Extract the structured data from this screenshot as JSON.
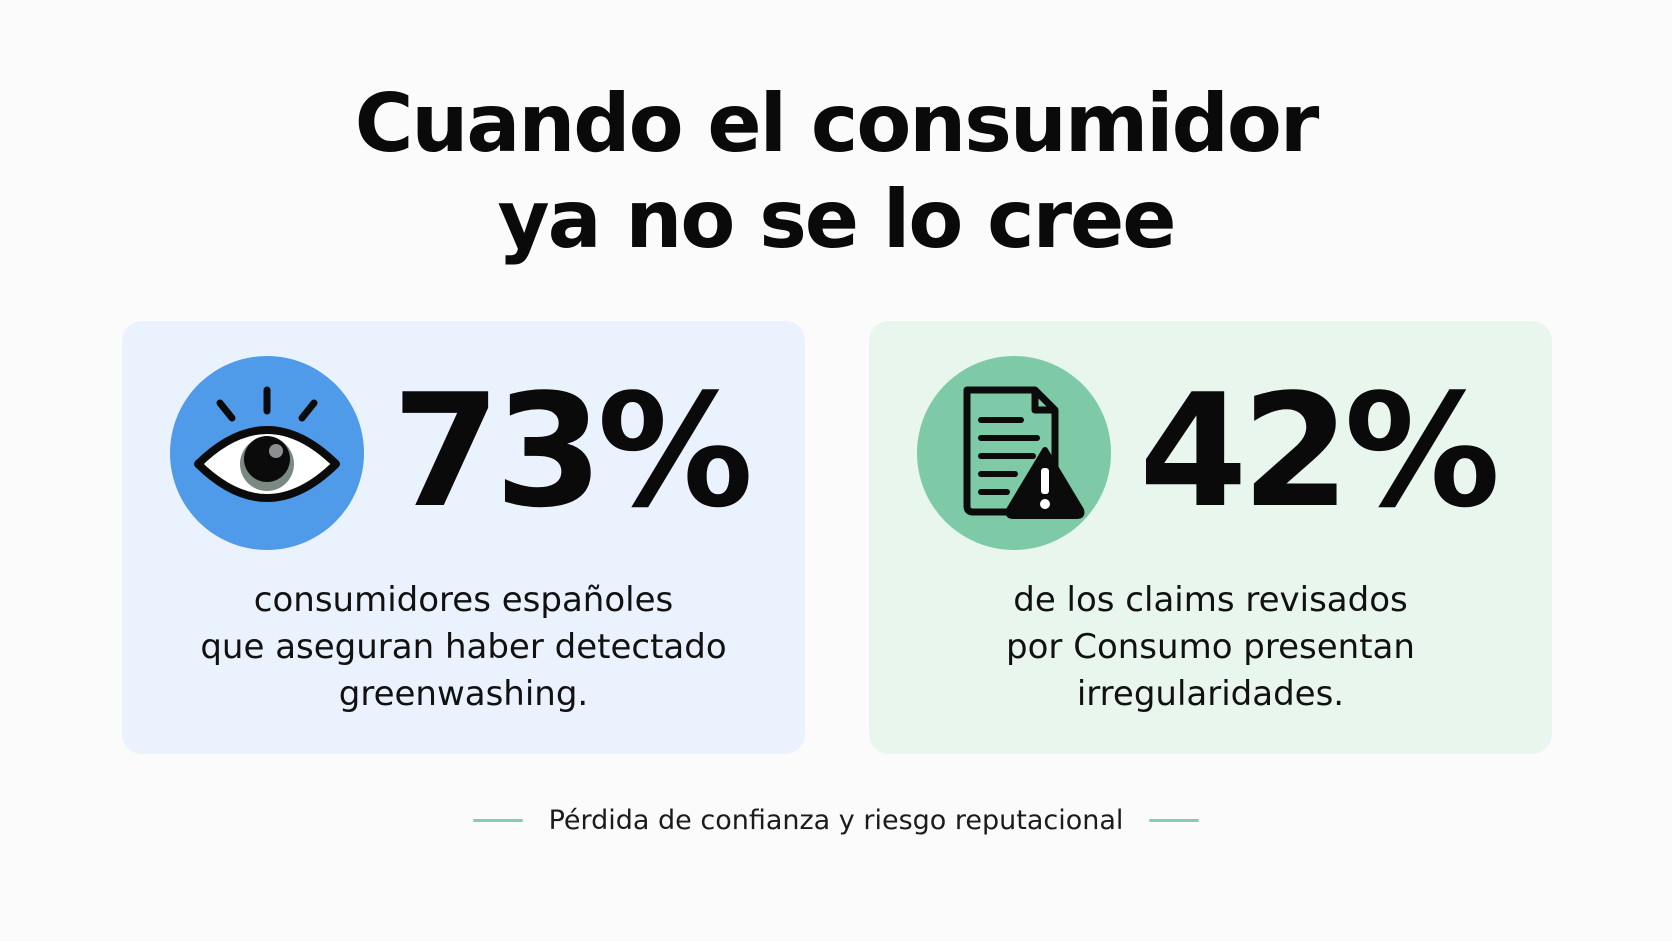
{
  "title": {
    "line1": "Cuando el consumidor",
    "line2": "ya no se lo cree"
  },
  "cards": [
    {
      "icon": "eye-icon",
      "stat": "73%",
      "description": [
        "consumidores españoles",
        "que aseguran haber detectado",
        "greenwashing."
      ],
      "accent_color": "#4f9be9",
      "background_color": "#eaf2fd"
    },
    {
      "icon": "document-warning-icon",
      "stat": "42%",
      "description": [
        "de los claims revisados",
        "por Consumo presentan",
        "irregularidades."
      ],
      "accent_color": "#7fcaa6",
      "background_color": "#e8f6ee"
    }
  ],
  "footer": {
    "text": "Pérdida de confianza y riesgo reputacional",
    "rule_color": "#86cdb0"
  }
}
